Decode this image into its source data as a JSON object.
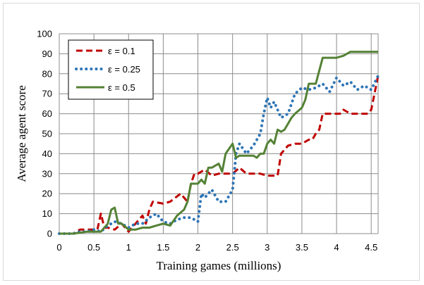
{
  "chart_data": {
    "type": "line",
    "title": "",
    "xlabel": "Training games (millions)",
    "ylabel": "Average agent score",
    "xlim": [
      0,
      4.6
    ],
    "ylim": [
      0,
      100
    ],
    "xticks": [
      0,
      0.5,
      1,
      1.5,
      2,
      2.5,
      3,
      3.5,
      4,
      4.5
    ],
    "xtick_labels": [
      "0",
      "0.5",
      "1",
      "1.5",
      "2",
      "2.5",
      "3",
      "3.5",
      "4",
      "4.5"
    ],
    "yticks": [
      0,
      10,
      20,
      30,
      40,
      50,
      60,
      70,
      80,
      90,
      100
    ],
    "ytick_labels": [
      "0",
      "10",
      "20",
      "30",
      "40",
      "50",
      "60",
      "70",
      "80",
      "90",
      "100"
    ],
    "grid": true,
    "legend_position": "top-left",
    "series": [
      {
        "name": "ε = 0.1",
        "color": "#c00000",
        "style": "dashed",
        "x": [
          0,
          0.2,
          0.3,
          0.45,
          0.55,
          0.6,
          0.65,
          0.7,
          0.8,
          0.9,
          1.0,
          1.1,
          1.2,
          1.25,
          1.3,
          1.35,
          1.5,
          1.6,
          1.75,
          1.85,
          1.9,
          1.95,
          2.0,
          2.1,
          2.2,
          2.3,
          2.4,
          2.5,
          2.6,
          2.7,
          2.8,
          2.9,
          3.0,
          3.1,
          3.15,
          3.2,
          3.3,
          3.4,
          3.5,
          3.6,
          3.65,
          3.7,
          3.75,
          3.8,
          3.9,
          4.0,
          4.05,
          4.1,
          4.2,
          4.3,
          4.4,
          4.45,
          4.5,
          4.6
        ],
        "y": [
          0,
          0,
          2,
          2,
          2,
          10,
          3,
          3,
          2,
          5,
          1,
          5,
          9,
          5,
          12,
          16,
          15,
          16,
          20,
          16,
          25,
          30,
          30,
          32,
          29,
          30,
          30,
          30,
          33,
          30,
          30,
          30,
          29,
          29,
          29,
          40,
          44,
          45,
          45,
          47,
          47,
          50,
          52,
          60,
          60,
          60,
          60,
          62,
          60,
          60,
          60,
          60,
          62,
          79
        ]
      },
      {
        "name": "ε = 0.25",
        "color": "#2e75b6",
        "style": "dotted",
        "x": [
          0,
          0.1,
          0.2,
          0.3,
          0.4,
          0.5,
          0.6,
          0.7,
          0.8,
          0.9,
          1.0,
          1.1,
          1.2,
          1.3,
          1.4,
          1.5,
          1.6,
          1.7,
          1.8,
          1.9,
          2.0,
          2.05,
          2.1,
          2.2,
          2.3,
          2.4,
          2.5,
          2.55,
          2.6,
          2.7,
          2.8,
          2.9,
          2.95,
          3.0,
          3.05,
          3.1,
          3.2,
          3.3,
          3.4,
          3.5,
          3.6,
          3.7,
          3.8,
          3.9,
          4.0,
          4.1,
          4.2,
          4.3,
          4.4,
          4.5,
          4.6
        ],
        "y": [
          0,
          0,
          0,
          1,
          1,
          2,
          1,
          4,
          6,
          5,
          3,
          5,
          5,
          8,
          10,
          6,
          5,
          7,
          8,
          8,
          6,
          20,
          18,
          22,
          16,
          16,
          22,
          40,
          45,
          40,
          44,
          50,
          60,
          68,
          63,
          66,
          58,
          60,
          70,
          73,
          72,
          73,
          75,
          71,
          78,
          74,
          76,
          72,
          74,
          72,
          79
        ]
      },
      {
        "name": "ε = 0.5",
        "color": "#548235",
        "style": "solid",
        "x": [
          0,
          0.2,
          0.4,
          0.5,
          0.6,
          0.7,
          0.75,
          0.8,
          0.85,
          0.9,
          1.0,
          1.1,
          1.2,
          1.3,
          1.4,
          1.5,
          1.6,
          1.7,
          1.8,
          1.85,
          1.9,
          2.0,
          2.05,
          2.1,
          2.15,
          2.2,
          2.3,
          2.35,
          2.4,
          2.5,
          2.55,
          2.6,
          2.7,
          2.8,
          2.85,
          2.9,
          2.95,
          3.0,
          3.05,
          3.1,
          3.15,
          3.2,
          3.25,
          3.3,
          3.35,
          3.4,
          3.5,
          3.55,
          3.6,
          3.7,
          3.8,
          3.9,
          4.0,
          4.1,
          4.2,
          4.3,
          4.4,
          4.5,
          4.6
        ],
        "y": [
          0,
          0,
          1,
          1,
          1,
          5,
          12,
          13,
          5,
          5,
          2,
          2,
          3,
          3,
          4,
          5,
          4,
          9,
          12,
          16,
          25,
          25,
          27,
          25,
          33,
          33,
          35,
          31,
          40,
          45,
          38,
          39,
          39,
          39,
          38,
          40,
          40,
          45,
          47,
          45,
          52,
          51,
          52,
          55,
          58,
          60,
          63,
          67,
          75,
          75,
          88,
          88,
          88,
          89,
          91,
          91,
          91,
          91,
          91
        ]
      }
    ]
  }
}
